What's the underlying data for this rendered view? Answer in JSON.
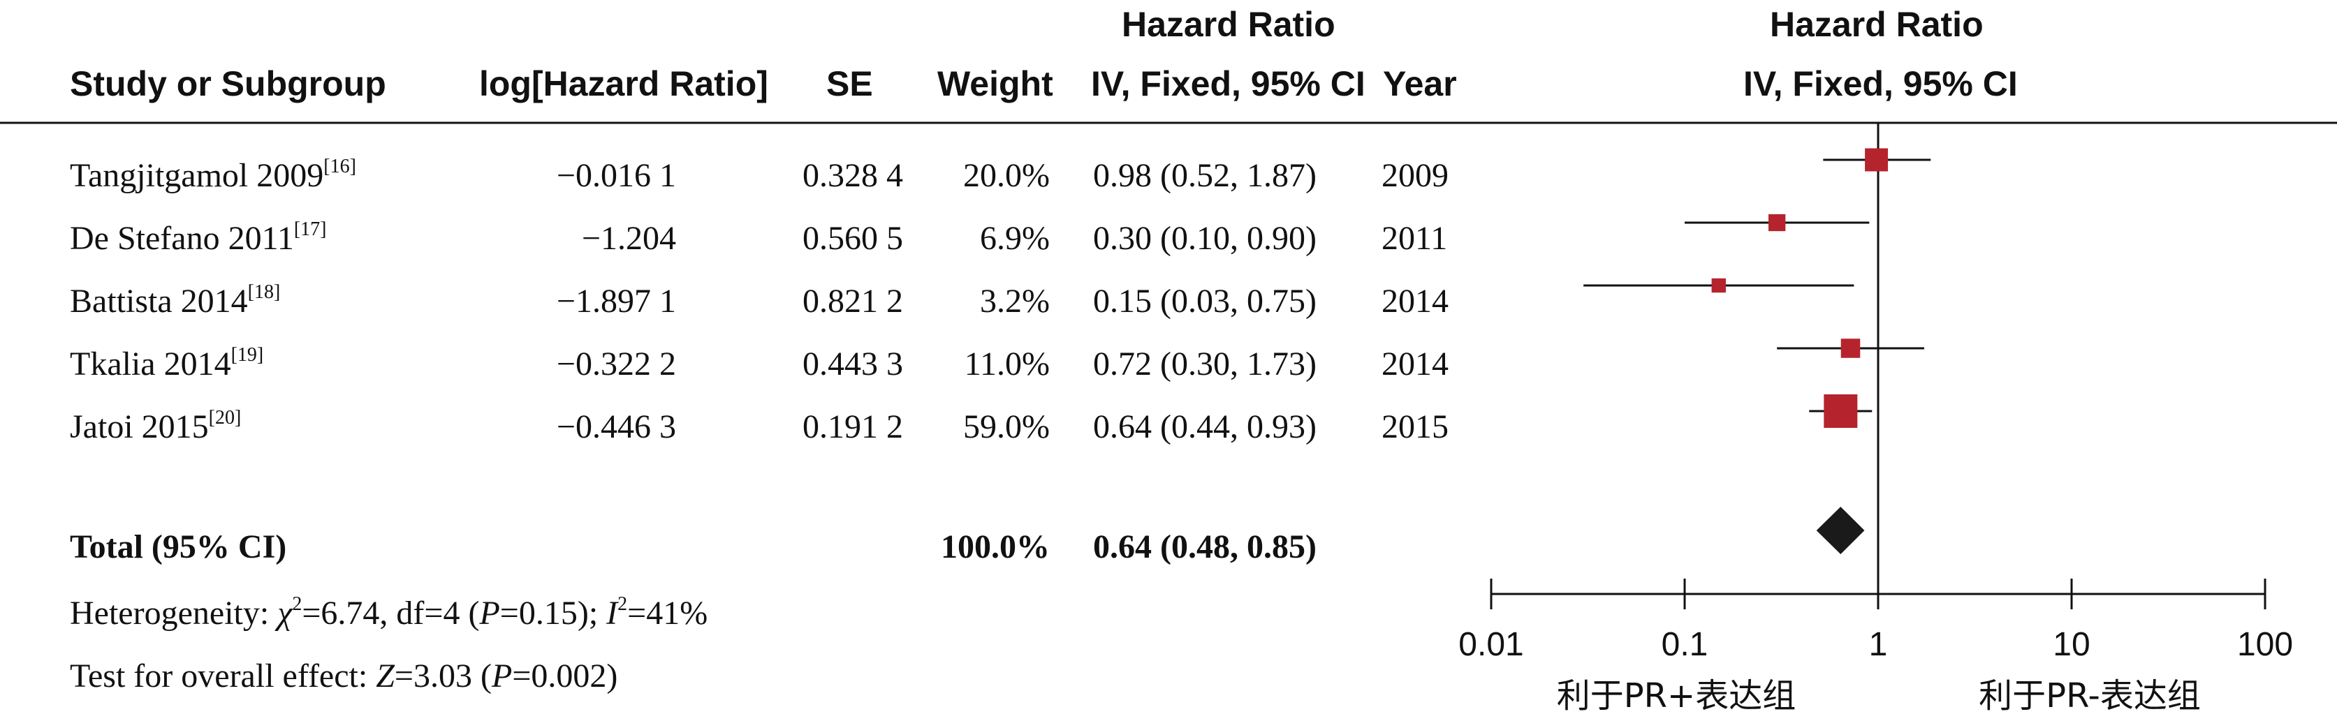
{
  "headers": {
    "study": "Study or Subgroup",
    "log_hr": "log[Hazard Ratio]",
    "se": "SE",
    "weight": "Weight",
    "hr_title": "Hazard Ratio",
    "hr_method": "IV, Fixed, 95% CI",
    "year": "Year",
    "plot_title": "Hazard Ratio",
    "plot_method": "IV, Fixed, 95% CI"
  },
  "studies": [
    {
      "name": "Tangjitgamol 2009",
      "ref": "[16]",
      "log_hr": "−0.016 1",
      "se": "0.328 4",
      "weight": "20.0%",
      "ci_text": "0.98 (0.52, 1.87)",
      "year": "2009"
    },
    {
      "name": "De Stefano 2011",
      "ref": "[17]",
      "log_hr": "−1.204",
      "se": "0.560 5",
      "weight": "6.9%",
      "ci_text": "0.30 (0.10, 0.90)",
      "year": "2011"
    },
    {
      "name": "Battista 2014",
      "ref": "[18]",
      "log_hr": "−1.897 1",
      "se": "0.821 2",
      "weight": "3.2%",
      "ci_text": "0.15 (0.03, 0.75)",
      "year": "2014"
    },
    {
      "name": "Tkalia 2014",
      "ref": "[19]",
      "log_hr": "−0.322 2",
      "se": "0.443 3",
      "weight": "11.0%",
      "ci_text": "0.72 (0.30, 1.73)",
      "year": "2014"
    },
    {
      "name": "Jatoi 2015",
      "ref": "[20]",
      "log_hr": "−0.446 3",
      "se": "0.191 2",
      "weight": "59.0%",
      "ci_text": "0.64 (0.44, 0.93)",
      "year": "2015"
    }
  ],
  "total": {
    "label": "Total (95% CI)",
    "weight": "100.0%",
    "ci_text": "0.64 (0.48, 0.85)"
  },
  "footer": {
    "het_prefix": "Heterogeneity: ",
    "chi": "χ",
    "het_mid": "=6.74, df=4 (",
    "p": "P",
    "het_p": "=0.15); ",
    "i": "I",
    "het_end": "=41%",
    "sq": "2",
    "overall_prefix": "Test for overall effect: ",
    "z": "Z",
    "overall_mid": "=3.03 (",
    "overall_end": "=0.002)"
  },
  "chart_data": {
    "type": "scatter",
    "x_scale": "log",
    "x_ticks": [
      0.01,
      0.1,
      1,
      10,
      100
    ],
    "x_tick_labels": [
      "0.01",
      "0.1",
      "1",
      "10",
      "100"
    ],
    "xlim": [
      0.01,
      100
    ],
    "reference_line": 1,
    "favours_left": "利于PR+表达组",
    "favours_right": "利于PR-表达组",
    "points": [
      {
        "study": "Tangjitgamol 2009",
        "hr": 0.98,
        "lower": 0.52,
        "upper": 1.87,
        "weight": 20.0
      },
      {
        "study": "De Stefano 2011",
        "hr": 0.3,
        "lower": 0.1,
        "upper": 0.9,
        "weight": 6.9
      },
      {
        "study": "Battista 2014",
        "hr": 0.15,
        "lower": 0.03,
        "upper": 0.75,
        "weight": 3.2
      },
      {
        "study": "Tkalia 2014",
        "hr": 0.72,
        "lower": 0.3,
        "upper": 1.73,
        "weight": 11.0
      },
      {
        "study": "Jatoi 2015",
        "hr": 0.64,
        "lower": 0.44,
        "upper": 0.93,
        "weight": 59.0
      }
    ],
    "pooled": {
      "hr": 0.64,
      "lower": 0.48,
      "upper": 0.85
    },
    "marker_color": "#b5242c",
    "diamond_color": "#1a1a1a"
  }
}
